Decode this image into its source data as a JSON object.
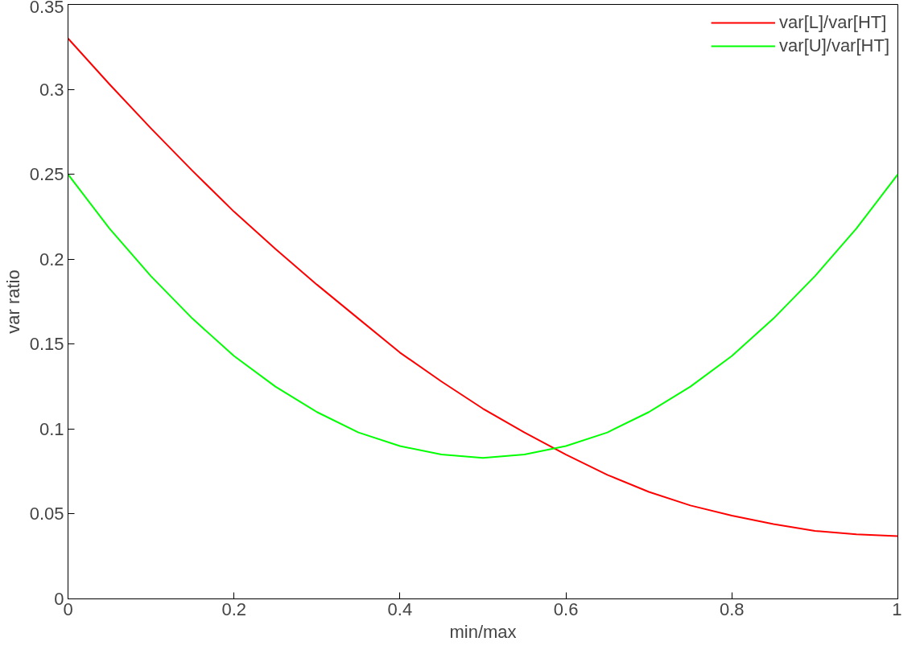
{
  "chart_data": {
    "type": "line",
    "xlabel": "min/max",
    "ylabel": "var ratio",
    "x": [
      0,
      0.05,
      0.1,
      0.15,
      0.2,
      0.25,
      0.3,
      0.35,
      0.4,
      0.45,
      0.5,
      0.55,
      0.6,
      0.65,
      0.7,
      0.75,
      0.8,
      0.85,
      0.9,
      0.95,
      1
    ],
    "series": [
      {
        "name": "var[L]/var[HT]",
        "color": "#ff0000",
        "values": [
          0.33,
          0.303,
          0.277,
          0.252,
          0.228,
          0.206,
          0.185,
          0.165,
          0.145,
          0.128,
          0.112,
          0.098,
          0.085,
          0.073,
          0.063,
          0.055,
          0.049,
          0.044,
          0.04,
          0.038,
          0.037
        ]
      },
      {
        "name": "var[U]/var[HT]",
        "color": "#00ff00",
        "values": [
          0.25,
          0.218,
          0.19,
          0.165,
          0.143,
          0.125,
          0.11,
          0.098,
          0.09,
          0.085,
          0.083,
          0.085,
          0.09,
          0.098,
          0.11,
          0.125,
          0.143,
          0.165,
          0.19,
          0.218,
          0.25
        ]
      }
    ],
    "xlim": [
      0,
      1
    ],
    "xticks": [
      0,
      0.2,
      0.4,
      0.6,
      0.8,
      1
    ],
    "ylim": [
      0,
      0.35
    ],
    "yticks": [
      0,
      0.05,
      0.1,
      0.15,
      0.2,
      0.25,
      0.3,
      0.35
    ],
    "grid": false,
    "legend": "top right",
    "marker": "none",
    "line_style": "solid"
  }
}
